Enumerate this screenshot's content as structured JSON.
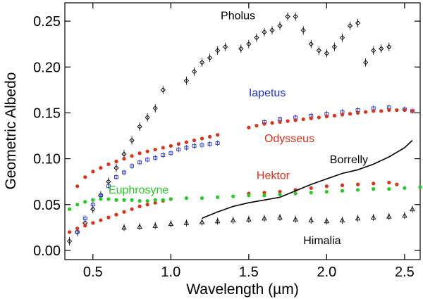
{
  "chart_data": {
    "type": "scatter",
    "xlabel": "Wavelength (µm)",
    "ylabel": "Geometric Albedo",
    "xlim": [
      0.32,
      2.6
    ],
    "ylim": [
      -0.01,
      0.27
    ],
    "x_ticks": [
      {
        "value": 0.5,
        "label": "0.5"
      },
      {
        "value": 1.0,
        "label": "1.0"
      },
      {
        "value": 1.5,
        "label": "1.5"
      },
      {
        "value": 2.0,
        "label": "2.0"
      },
      {
        "value": 2.5,
        "label": "2.5"
      }
    ],
    "y_ticks": [
      {
        "value": 0.0,
        "label": "0.00"
      },
      {
        "value": 0.05,
        "label": "0.05"
      },
      {
        "value": 0.1,
        "label": "0.10"
      },
      {
        "value": 0.15,
        "label": "0.15"
      },
      {
        "value": 0.2,
        "label": "0.20"
      },
      {
        "value": 0.25,
        "label": "0.25"
      }
    ],
    "grid": false,
    "legend": "inline labels",
    "series": [
      {
        "name": "Pholus",
        "color": "#000000",
        "marker": "open-diamond-errorbar",
        "label_pos": [
          1.32,
          0.252
        ],
        "x": [
          0.35,
          0.4,
          0.45,
          0.5,
          0.55,
          0.6,
          0.65,
          0.7,
          0.75,
          0.8,
          0.85,
          0.9,
          0.95,
          1.1,
          1.15,
          1.2,
          1.25,
          1.3,
          1.35,
          1.45,
          1.5,
          1.55,
          1.6,
          1.65,
          1.7,
          1.75,
          1.8,
          1.85,
          1.9,
          1.95,
          2.0,
          2.05,
          2.1,
          2.15,
          2.2,
          2.25,
          2.3,
          2.35,
          2.4
        ],
        "y": [
          0.01,
          0.02,
          0.03,
          0.045,
          0.06,
          0.075,
          0.09,
          0.105,
          0.12,
          0.135,
          0.145,
          0.155,
          0.175,
          0.185,
          0.195,
          0.205,
          0.21,
          0.218,
          0.222,
          0.22,
          0.225,
          0.232,
          0.238,
          0.24,
          0.245,
          0.255,
          0.255,
          0.24,
          0.225,
          0.218,
          0.215,
          0.222,
          0.232,
          0.245,
          0.248,
          0.205,
          0.218,
          0.22,
          0.222
        ]
      },
      {
        "name": "Iapetus",
        "color": "#1f2fd0",
        "marker": "open-square-errorbar",
        "label_pos": [
          1.5,
          0.168
        ],
        "x": [
          0.4,
          0.45,
          0.5,
          0.55,
          0.6,
          0.65,
          0.7,
          0.75,
          0.8,
          0.85,
          0.9,
          0.95,
          1.0,
          1.05,
          1.1,
          1.15,
          1.2,
          1.25,
          1.3,
          1.6,
          1.7,
          1.8,
          1.9,
          2.0,
          2.1,
          2.2,
          2.3,
          2.4,
          2.5,
          2.55
        ],
        "y": [
          0.02,
          0.035,
          0.05,
          0.06,
          0.07,
          0.08,
          0.085,
          0.092,
          0.096,
          0.099,
          0.101,
          0.104,
          0.106,
          0.11,
          0.112,
          0.114,
          0.115,
          0.116,
          0.117,
          0.14,
          0.143,
          0.145,
          0.147,
          0.149,
          0.151,
          0.153,
          0.155,
          0.156,
          0.154,
          0.152
        ]
      },
      {
        "name": "Odysseus",
        "color": "#e03018",
        "marker": "filled-dot",
        "label_pos": [
          1.6,
          0.118
        ],
        "x": [
          0.4,
          0.45,
          0.5,
          0.55,
          0.6,
          0.65,
          0.7,
          0.75,
          0.8,
          0.85,
          0.9,
          0.95,
          1.0,
          1.05,
          1.1,
          1.15,
          1.2,
          1.25,
          1.3,
          1.5,
          1.55,
          1.6,
          1.65,
          1.7,
          1.75,
          1.8,
          1.85,
          1.9,
          1.95,
          2.0,
          2.05,
          2.1,
          2.15,
          2.2,
          2.25,
          2.3,
          2.35,
          2.4,
          2.45,
          2.5,
          2.55
        ],
        "y": [
          0.07,
          0.08,
          0.086,
          0.09,
          0.094,
          0.097,
          0.1,
          0.103,
          0.106,
          0.108,
          0.11,
          0.112,
          0.114,
          0.116,
          0.118,
          0.12,
          0.122,
          0.124,
          0.126,
          0.134,
          0.136,
          0.138,
          0.139,
          0.14,
          0.141,
          0.142,
          0.143,
          0.144,
          0.145,
          0.146,
          0.147,
          0.148,
          0.149,
          0.15,
          0.151,
          0.152,
          0.152,
          0.153,
          0.153,
          0.153,
          0.152
        ]
      },
      {
        "name": "Hektor",
        "color": "#e03018",
        "marker": "filled-dot",
        "label_pos": [
          1.55,
          0.078
        ],
        "x": [
          0.35,
          0.4,
          0.45,
          0.5,
          0.55,
          0.6,
          0.65,
          0.7,
          0.75,
          0.8,
          0.85,
          0.9,
          0.95,
          1.0,
          1.5,
          1.6,
          1.7,
          1.8,
          1.9,
          2.0,
          2.1,
          2.2,
          2.3,
          2.4,
          2.45
        ],
        "y": [
          0.02,
          0.024,
          0.027,
          0.03,
          0.033,
          0.036,
          0.039,
          0.042,
          0.045,
          0.048,
          0.05,
          0.052,
          0.054,
          0.056,
          0.062,
          0.063,
          0.064,
          0.066,
          0.068,
          0.07,
          0.071,
          0.072,
          0.073,
          0.074,
          0.072
        ]
      },
      {
        "name": "Euphrosyne",
        "color": "#22cc22",
        "marker": "filled-dot",
        "label_pos": [
          0.6,
          0.062
        ],
        "x": [
          0.35,
          0.4,
          0.45,
          0.5,
          0.55,
          0.6,
          0.65,
          0.7,
          0.75,
          0.8,
          0.85,
          0.9,
          0.95,
          1.0,
          1.1,
          1.2,
          1.3,
          1.4,
          1.5,
          1.6,
          1.7,
          1.8,
          1.9,
          2.0,
          2.1,
          2.2,
          2.3,
          2.4,
          2.5,
          2.6
        ],
        "y": [
          0.045,
          0.05,
          0.053,
          0.055,
          0.056,
          0.056,
          0.055,
          0.055,
          0.055,
          0.054,
          0.054,
          0.055,
          0.055,
          0.056,
          0.057,
          0.057,
          0.058,
          0.059,
          0.06,
          0.06,
          0.061,
          0.062,
          0.063,
          0.064,
          0.065,
          0.066,
          0.067,
          0.067,
          0.068,
          0.069
        ]
      },
      {
        "name": "Borrelly",
        "color": "#000000",
        "marker": "line",
        "label_pos": [
          2.02,
          0.095
        ],
        "x": [
          1.2,
          1.3,
          1.4,
          1.5,
          1.6,
          1.7,
          1.8,
          1.9,
          2.0,
          2.1,
          2.2,
          2.3,
          2.4,
          2.5,
          2.55
        ],
        "y": [
          0.035,
          0.042,
          0.048,
          0.052,
          0.055,
          0.058,
          0.065,
          0.072,
          0.078,
          0.084,
          0.088,
          0.094,
          0.102,
          0.112,
          0.12
        ]
      },
      {
        "name": "Himalia",
        "color": "#000000",
        "marker": "open-triangle-errorbar",
        "label_pos": [
          1.85,
          0.007
        ],
        "x": [
          0.7,
          0.8,
          0.9,
          1.0,
          1.1,
          1.2,
          1.3,
          1.4,
          1.5,
          1.6,
          1.7,
          1.8,
          1.9,
          2.0,
          2.1,
          2.2,
          2.3,
          2.4,
          2.5,
          2.55
        ],
        "y": [
          0.025,
          0.026,
          0.027,
          0.029,
          0.03,
          0.031,
          0.032,
          0.033,
          0.034,
          0.035,
          0.036,
          0.034,
          0.033,
          0.032,
          0.033,
          0.035,
          0.036,
          0.037,
          0.038,
          0.045
        ]
      }
    ]
  }
}
